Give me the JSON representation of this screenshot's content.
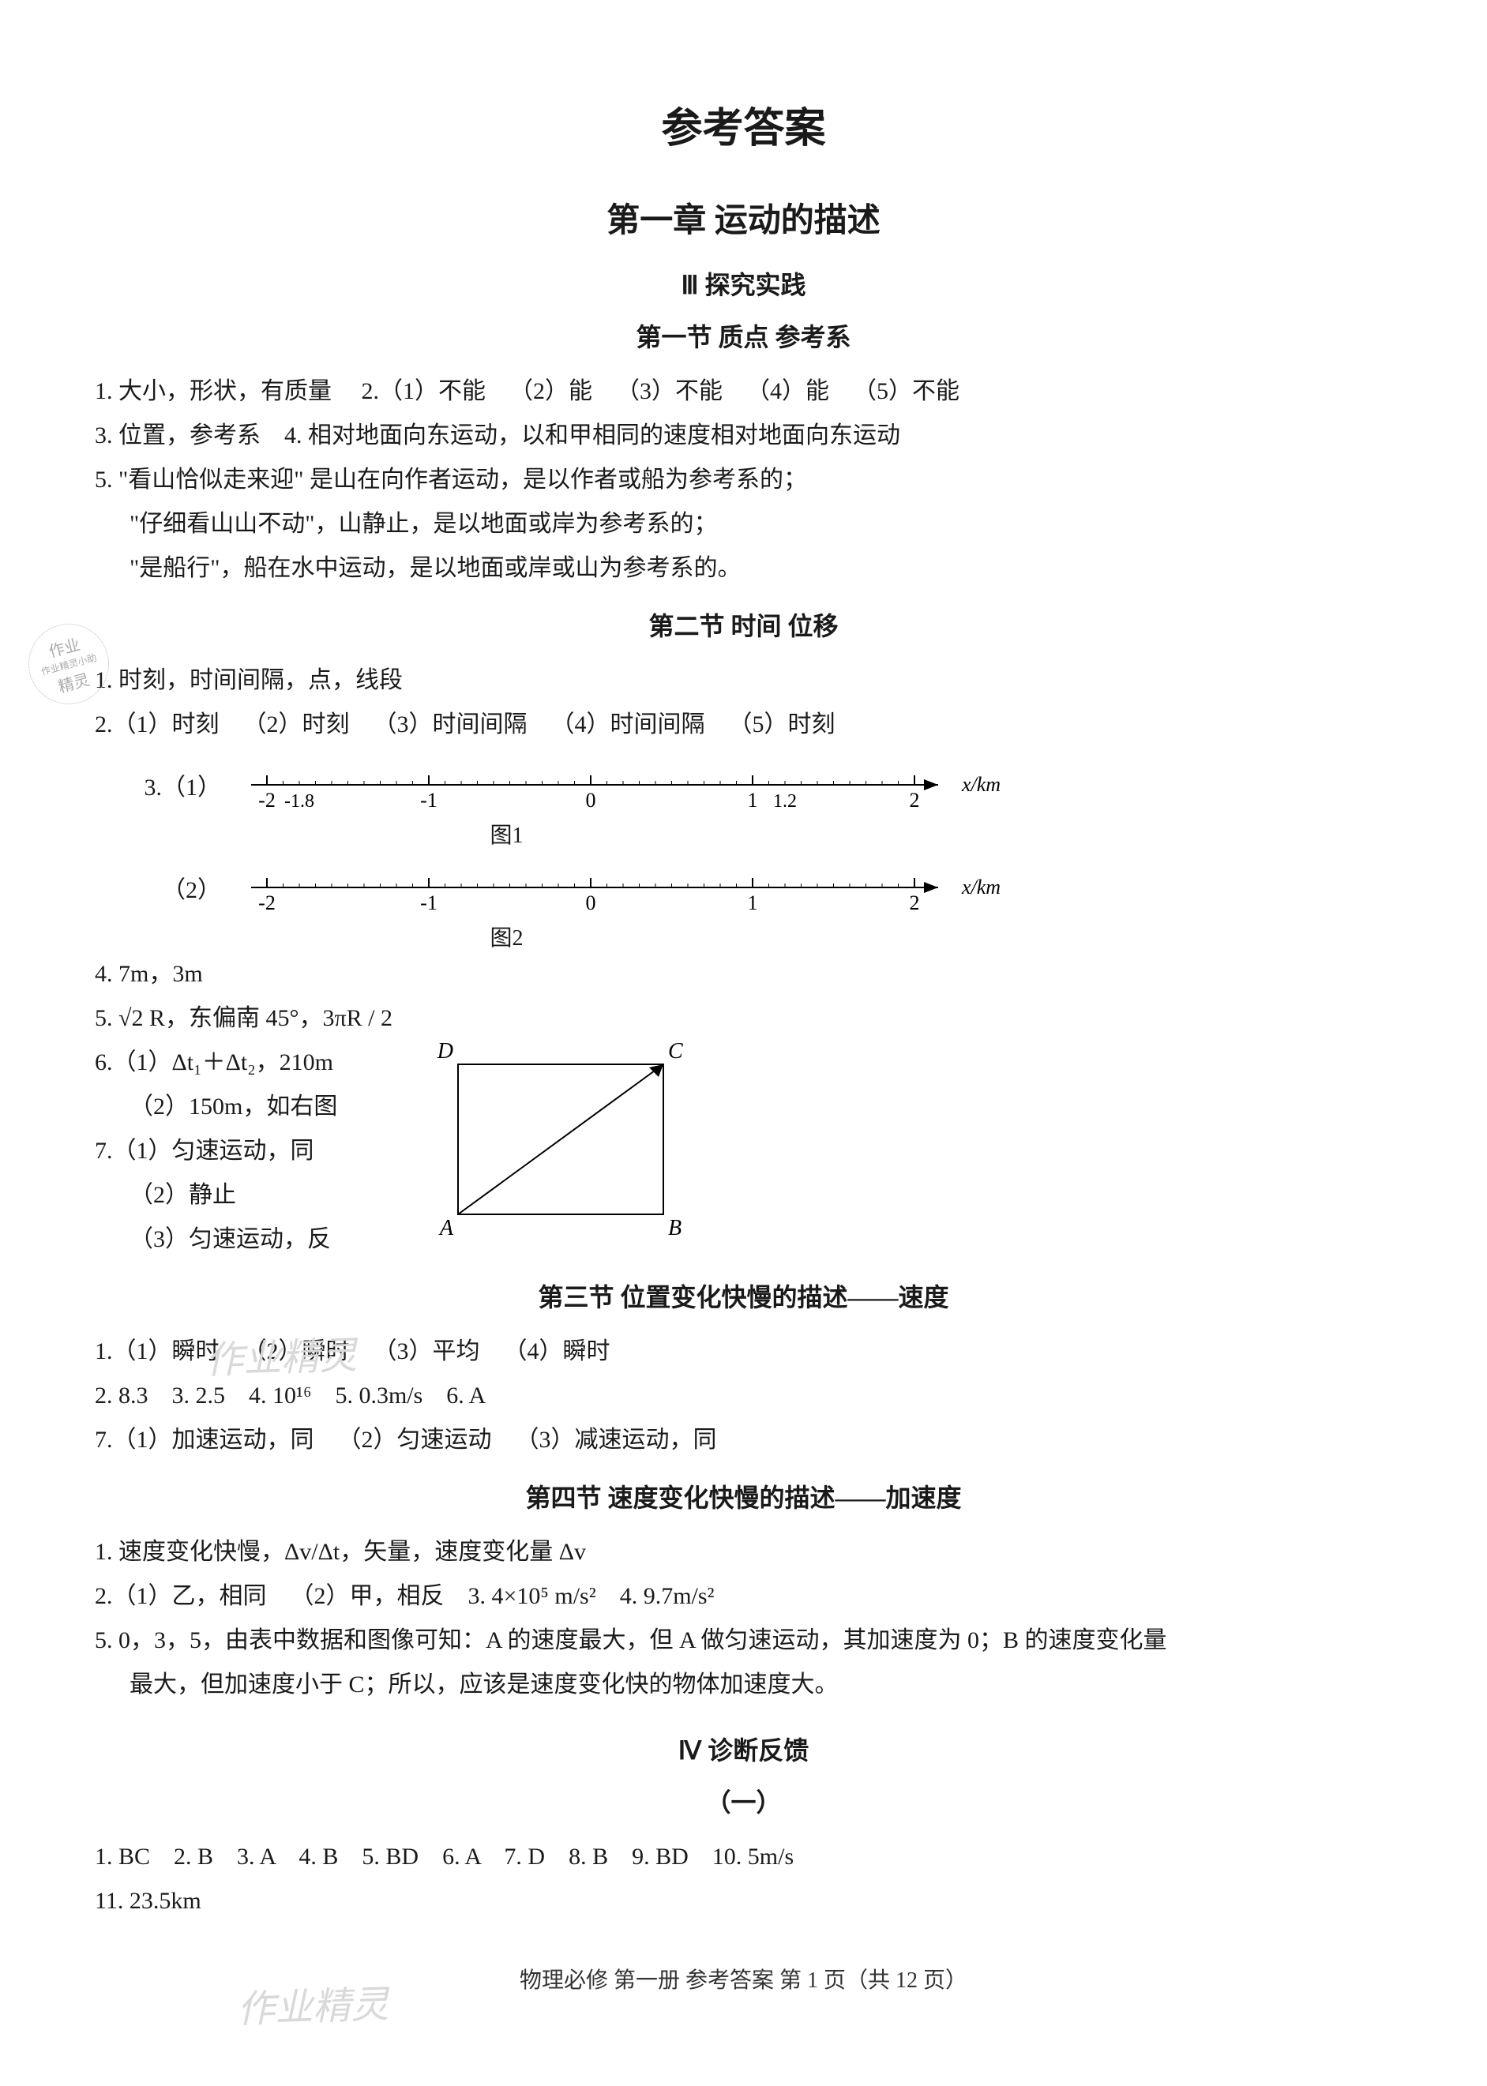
{
  "main_title": "参考答案",
  "chapter": "第一章  运动的描述",
  "roman3": "Ⅲ  探究实践",
  "sec1": {
    "title": "第一节  质点  参考系",
    "l1": "1. 大小，形状，有质量     2.（1）不能    （2）能    （3）不能    （4）能    （5）不能",
    "l2": "3. 位置，参考系    4. 相对地面向东运动，以和甲相同的速度相对地面向东运动",
    "l3": "5. \"看山恰似走来迎\" 是山在向作者运动，是以作者或船为参考系的；",
    "l4": "\"仔细看山山不动\"，山静止，是以地面或岸为参考系的；",
    "l5": "\"是船行\"，船在水中运动，是以地面或岸或山为参考系的。"
  },
  "sec2": {
    "title": "第二节  时间  位移",
    "l1": "1. 时刻，时间间隔，点，线段",
    "l2": "2.（1）时刻    （2）时刻    （3）时间间隔    （4）时间间隔    （5）时刻",
    "l3a_prefix": "3.（1）",
    "l3b_prefix": "（2）",
    "nl1": {
      "ticks_major": [
        -2,
        -1,
        0,
        1,
        2
      ],
      "extra_ticks": [
        -1.8,
        1.2
      ],
      "xlabel": "x/km",
      "caption": "图1",
      "color": "#000000"
    },
    "nl2": {
      "ticks_major": [
        -2,
        -1,
        0,
        1,
        2
      ],
      "xlabel": "x/km",
      "caption": "图2",
      "color": "#000000"
    },
    "l4": "4. 7m，3m",
    "l5": "5. √2 R，东偏南 45°，3πR / 2",
    "l6a": "6.（1）Δt₁＋Δt₂，210m",
    "l6b": "（2）150m，如右图",
    "l7a": "7.（1）匀速运动，同",
    "l7b": "（2）静止",
    "l7c": "（3）匀速运动，反",
    "rect": {
      "A": "A",
      "B": "B",
      "C": "C",
      "D": "D",
      "stroke": "#000000"
    }
  },
  "sec3": {
    "title": "第三节  位置变化快慢的描述——速度",
    "l1": "1.（1）瞬时    （2）瞬时    （3）平均    （4）瞬时",
    "l2": "2. 8.3    3. 2.5    4. 10¹⁶    5. 0.3m/s    6. A",
    "l3": "7.（1）加速运动，同    （2）匀速运动    （3）减速运动，同"
  },
  "sec4": {
    "title": "第四节  速度变化快慢的描述——加速度",
    "l1": "1. 速度变化快慢，Δv/Δt，矢量，速度变化量 Δv",
    "l2": "2.（1）乙，相同    （2）甲，相反    3. 4×10⁵ m/s²    4. 9.7m/s²",
    "l3": "5. 0，3，5，由表中数据和图像可知：A 的速度最大，但 A 做匀速运动，其加速度为 0；B 的速度变化量",
    "l4": "最大，但加速度小于 C；所以，应该是速度变化快的物体加速度大。"
  },
  "roman4": "Ⅳ  诊断反馈",
  "sub1": "（一）",
  "diag": {
    "l1": "1. BC    2. B    3. A    4. B    5. BD    6. A    7. D    8. B    9. BD    10. 5m/s",
    "l2": "11. 23.5km"
  },
  "footer": "物理必修  第一册    参考答案    第 1 页（共 12 页）",
  "stamp": {
    "t1": "作业",
    "t2": "作业精灵小助",
    "t3": "精灵"
  },
  "watermark1": "作业精灵",
  "watermark2": "作业精灵",
  "colors": {
    "text": "#1a1a1a",
    "bg": "#ffffff",
    "stamp": "#aaaaaa",
    "wm": "#d9d9d9"
  }
}
